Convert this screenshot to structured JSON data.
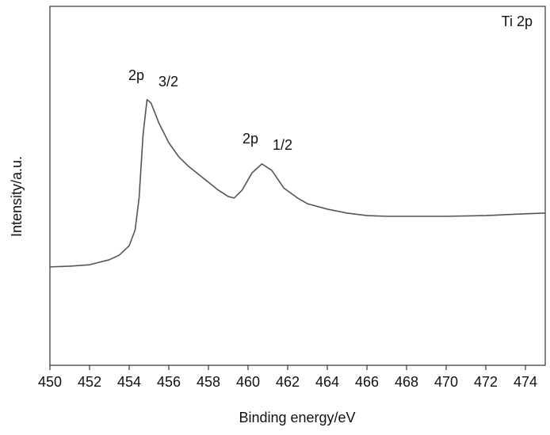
{
  "chart_data": {
    "type": "line",
    "x_label": "Binding energy/eV",
    "y_label": "Intensity/a.u.",
    "label": "Ti 2p",
    "annotations": [
      {
        "text": "2p",
        "sub": "3/2"
      },
      {
        "text": "2p",
        "sub": "1/2"
      }
    ],
    "color": "#555555",
    "x": [
      450,
      451,
      452,
      453,
      453.5,
      454,
      454.3,
      454.5,
      454.7,
      454.9,
      455.1,
      455.5,
      456,
      456.5,
      457,
      457.5,
      458,
      458.5,
      459,
      459.3,
      459.7,
      460.2,
      460.7,
      461.2,
      461.8,
      462.5,
      463,
      464,
      465,
      466,
      467,
      468,
      470,
      472,
      474,
      475
    ],
    "values": [
      27.4,
      27.6,
      28.0,
      29.4,
      30.7,
      33.3,
      37.7,
      46.6,
      64.2,
      74.0,
      73.1,
      67.5,
      62.0,
      58.1,
      55.4,
      53.2,
      51.0,
      48.8,
      47.0,
      46.6,
      48.8,
      53.6,
      56.1,
      54.3,
      49.4,
      46.6,
      45.0,
      43.5,
      42.4,
      41.7,
      41.5,
      41.5,
      41.5,
      41.7,
      42.2,
      42.4
    ],
    "xlim": [
      450,
      475
    ],
    "xticks": [
      450,
      452,
      454,
      456,
      458,
      460,
      462,
      464,
      466,
      468,
      470,
      472,
      474
    ],
    "ylim": [
      0,
      100
    ]
  }
}
